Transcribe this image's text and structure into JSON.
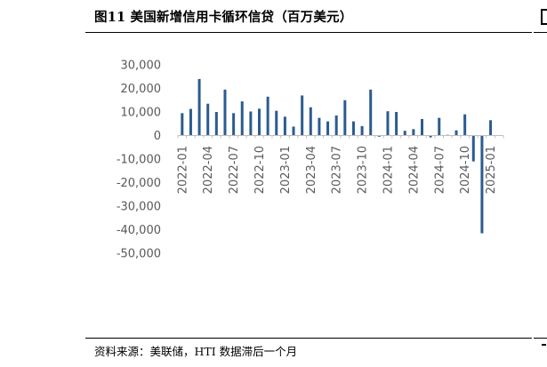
{
  "header": {
    "title": "图11 美国新增信用卡循环信贷（百万美元）"
  },
  "footer": {
    "source": "资料来源：美联储，HTI  数据滞后一个月"
  },
  "colors": {
    "bar": "#2B5C8F",
    "axis": "#bfbfbf",
    "tick_text": "#595959"
  },
  "chart_data": {
    "type": "bar",
    "title": "图11 美国新增信用卡循环信贷（百万美元）",
    "xlabel": "",
    "ylabel": "",
    "ylim": [
      -50000,
      30000
    ],
    "y_ticks": [
      30000,
      20000,
      10000,
      0,
      -10000,
      -20000,
      -30000,
      -40000,
      -50000
    ],
    "y_tick_labels": [
      "30,000",
      "20,000",
      "10,000",
      "0",
      "-10,000",
      "-20,000",
      "-30,000",
      "-40,000",
      "-50,000"
    ],
    "grid": false,
    "legend": "none",
    "x_tick_labels": [
      "2022-01",
      "2022-04",
      "2022-07",
      "2022-10",
      "2023-01",
      "2023-04",
      "2023-07",
      "2023-10",
      "2024-01",
      "2024-04",
      "2024-07",
      "2024-10",
      "2025-01"
    ],
    "categories": [
      "2022-01",
      "2022-02",
      "2022-03",
      "2022-04",
      "2022-05",
      "2022-06",
      "2022-07",
      "2022-08",
      "2022-09",
      "2022-10",
      "2022-11",
      "2022-12",
      "2023-01",
      "2023-02",
      "2023-03",
      "2023-04",
      "2023-05",
      "2023-06",
      "2023-07",
      "2023-08",
      "2023-09",
      "2023-10",
      "2023-11",
      "2023-12",
      "2024-01",
      "2024-02",
      "2024-03",
      "2024-04",
      "2024-05",
      "2024-06",
      "2024-07",
      "2024-08",
      "2024-09",
      "2024-10",
      "2024-11",
      "2024-12",
      "2025-01",
      "2025-02"
    ],
    "values": [
      9500,
      11300,
      24000,
      13500,
      10000,
      19500,
      9500,
      14500,
      10200,
      11400,
      16500,
      10500,
      8000,
      3800,
      17000,
      12000,
      7500,
      6000,
      8500,
      15000,
      6000,
      4000,
      19500,
      -500,
      10300,
      10000,
      2000,
      2700,
      7000,
      -800,
      7500,
      300,
      2200,
      9000,
      -11000,
      -41500,
      6500,
      0
    ]
  }
}
